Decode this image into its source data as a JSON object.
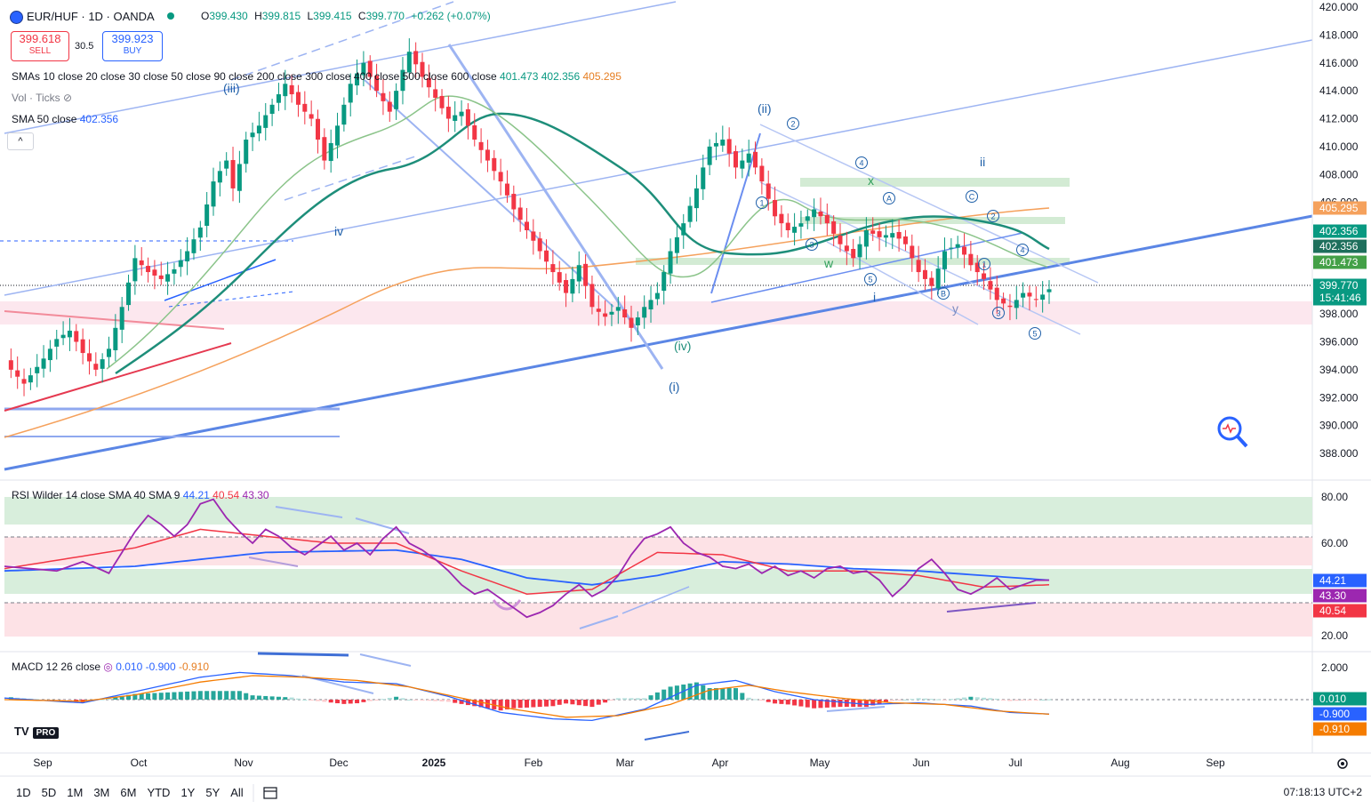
{
  "header": {
    "symbol": "EUR/HUF · 1D · OANDA",
    "open_label": "O",
    "open": "399.430",
    "high_label": "H",
    "high": "399.815",
    "low_label": "L",
    "low": "399.415",
    "close_label": "C",
    "close": "399.770",
    "change": "+0.262 (+0.07%)"
  },
  "trade": {
    "sell_price": "399.618",
    "sell_label": "SELL",
    "spread": "30.5",
    "buy_price": "399.923",
    "buy_label": "BUY"
  },
  "indicators": {
    "smas_label": "SMAs 10 close 20 close 30 close 50 close 90 close 200 close 300 close 400 close 500 close 600 close",
    "smas_v1": "401.473",
    "smas_v2": "402.356",
    "smas_v3": "405.295",
    "vol_label": "Vol · Ticks",
    "sma50_label": "SMA 50 close",
    "sma50_value": "402.356",
    "rsi_label": "RSI Wilder 14 close SMA 40 SMA 9",
    "rsi_v1": "44.21",
    "rsi_v2": "40.54",
    "rsi_v3": "43.30",
    "macd_label": "MACD 12 26 close",
    "macd_v1": "0.010",
    "macd_v2": "-0.900",
    "macd_v3": "-0.910"
  },
  "collapse_button": "^",
  "timeframes": [
    "1D",
    "5D",
    "1M",
    "3M",
    "6M",
    "YTD",
    "1Y",
    "5Y",
    "All"
  ],
  "clock": "07:18:13 UTC+2",
  "logo": "TV",
  "logo_badge": "PRO",
  "colors": {
    "up": "#089981",
    "down": "#f23645",
    "blue": "#2962ff",
    "orange": "#f5a15c",
    "purple": "#9c27b0"
  },
  "chart_data": {
    "type": "candlestick",
    "x_ticks": [
      "Sep",
      "Oct",
      "Nov",
      "Dec",
      "2025",
      "Feb",
      "Mar",
      "Apr",
      "May",
      "Jun",
      "Jul",
      "Aug",
      "Sep"
    ],
    "price_axis": {
      "range": [
        387,
        420
      ],
      "ticks": [
        "420.000",
        "418.000",
        "416.000",
        "414.000",
        "412.000",
        "410.000",
        "408.000",
        "406.000",
        "398.000",
        "396.000",
        "394.000",
        "392.000",
        "390.000",
        "388.000"
      ],
      "badges": [
        {
          "value": 405.295,
          "label": "405.295",
          "color": "#f5a15c"
        },
        {
          "value": 402.356,
          "label": "402.356",
          "color": "#089981"
        },
        {
          "value": 402.356,
          "label": "402.356",
          "color": "#1e6f5c"
        },
        {
          "value": 401.473,
          "label": "401.473",
          "color": "#43a047"
        },
        {
          "value": 399.77,
          "label": "399.770",
          "sub": "15:41:46",
          "color": "#089981"
        }
      ]
    },
    "rsi_axis": {
      "range": [
        15,
        85
      ],
      "ticks": [
        "80.00",
        "60.00",
        "20.00"
      ],
      "badges": [
        {
          "value": 44.21,
          "label": "44.21",
          "color": "#2962ff"
        },
        {
          "value": 43.3,
          "label": "43.30",
          "color": "#9c27b0"
        },
        {
          "value": 40.54,
          "label": "40.54",
          "color": "#f23645"
        }
      ]
    },
    "macd_axis": {
      "range": [
        -1.8,
        2.6
      ],
      "ticks": [
        "2.000"
      ],
      "badges": [
        {
          "value": 0.01,
          "label": "0.010",
          "color": "#089981"
        },
        {
          "value": -0.9,
          "label": "-0.900",
          "color": "#2962ff"
        },
        {
          "value": -0.91,
          "label": "-0.910",
          "color": "#f57c00"
        }
      ]
    },
    "price_path": [
      [
        0,
        394.5
      ],
      [
        3,
        393.0
      ],
      [
        6,
        394.8
      ],
      [
        8,
        396.2
      ],
      [
        10,
        396.8
      ],
      [
        12,
        395.2
      ],
      [
        14,
        394.0
      ],
      [
        16,
        395.5
      ],
      [
        18,
        398.5
      ],
      [
        20,
        402.0
      ],
      [
        22,
        401.0
      ],
      [
        24,
        400.5
      ],
      [
        26,
        401.2
      ],
      [
        28,
        402.5
      ],
      [
        30,
        404.2
      ],
      [
        32,
        407.5
      ],
      [
        34,
        409.0
      ],
      [
        35,
        407.0
      ],
      [
        37,
        410.5
      ],
      [
        39,
        411.5
      ],
      [
        41,
        413.0
      ],
      [
        43,
        414.5
      ],
      [
        45,
        413.0
      ],
      [
        47,
        412.0
      ],
      [
        49,
        409.0
      ],
      [
        51,
        411.5
      ],
      [
        53,
        414.5
      ],
      [
        55,
        416.0
      ],
      [
        57,
        414.0
      ],
      [
        59,
        412.5
      ],
      [
        61,
        415.5
      ],
      [
        62,
        416.8
      ],
      [
        64,
        415.0
      ],
      [
        66,
        413.5
      ],
      [
        68,
        412.0
      ],
      [
        70,
        412.5
      ],
      [
        72,
        410.5
      ],
      [
        74,
        409.0
      ],
      [
        76,
        407.5
      ],
      [
        78,
        405.5
      ],
      [
        80,
        404.0
      ],
      [
        82,
        402.5
      ],
      [
        84,
        401.0
      ],
      [
        86,
        399.5
      ],
      [
        88,
        401.5
      ],
      [
        90,
        398.5
      ],
      [
        92,
        397.8
      ],
      [
        94,
        398.5
      ],
      [
        96,
        397.0
      ],
      [
        98,
        398.5
      ],
      [
        100,
        399.5
      ],
      [
        102,
        402.5
      ],
      [
        104,
        404.5
      ],
      [
        106,
        407.0
      ],
      [
        108,
        410.0
      ],
      [
        110,
        410.5
      ],
      [
        112,
        408.5
      ],
      [
        114,
        409.5
      ],
      [
        116,
        407.5
      ],
      [
        118,
        405.0
      ],
      [
        120,
        404.0
      ],
      [
        122,
        404.5
      ],
      [
        124,
        405.5
      ],
      [
        126,
        404.5
      ],
      [
        128,
        403.0
      ],
      [
        130,
        402.0
      ],
      [
        132,
        404.0
      ],
      [
        134,
        403.5
      ],
      [
        136,
        403.8
      ],
      [
        138,
        403.0
      ],
      [
        140,
        401.0
      ],
      [
        142,
        400.0
      ],
      [
        144,
        402.5
      ],
      [
        146,
        403.0
      ],
      [
        148,
        401.5
      ],
      [
        150,
        400.5
      ],
      [
        152,
        399.0
      ],
      [
        154,
        398.5
      ],
      [
        156,
        399.5
      ],
      [
        158,
        399.0
      ],
      [
        160,
        399.77
      ]
    ],
    "rsi_path": [
      [
        0,
        50
      ],
      [
        4,
        49
      ],
      [
        8,
        48
      ],
      [
        12,
        52
      ],
      [
        16,
        47
      ],
      [
        20,
        65
      ],
      [
        22,
        72
      ],
      [
        24,
        68
      ],
      [
        26,
        63
      ],
      [
        28,
        68
      ],
      [
        30,
        77
      ],
      [
        32,
        79
      ],
      [
        34,
        71
      ],
      [
        36,
        65
      ],
      [
        38,
        60
      ],
      [
        40,
        66
      ],
      [
        42,
        63
      ],
      [
        44,
        58
      ],
      [
        46,
        55
      ],
      [
        48,
        59
      ],
      [
        50,
        63
      ],
      [
        52,
        57
      ],
      [
        54,
        60
      ],
      [
        56,
        55
      ],
      [
        58,
        62
      ],
      [
        60,
        67
      ],
      [
        62,
        60
      ],
      [
        64,
        57
      ],
      [
        66,
        53
      ],
      [
        68,
        48
      ],
      [
        70,
        42
      ],
      [
        72,
        38
      ],
      [
        74,
        40
      ],
      [
        76,
        36
      ],
      [
        78,
        32
      ],
      [
        80,
        28
      ],
      [
        82,
        30
      ],
      [
        84,
        33
      ],
      [
        86,
        38
      ],
      [
        88,
        42
      ],
      [
        90,
        37
      ],
      [
        92,
        40
      ],
      [
        94,
        46
      ],
      [
        96,
        55
      ],
      [
        98,
        62
      ],
      [
        100,
        64
      ],
      [
        102,
        67
      ],
      [
        104,
        60
      ],
      [
        106,
        56
      ],
      [
        108,
        54
      ],
      [
        110,
        50
      ],
      [
        112,
        49
      ],
      [
        114,
        51
      ],
      [
        116,
        47
      ],
      [
        118,
        50
      ],
      [
        120,
        46
      ],
      [
        122,
        48
      ],
      [
        124,
        45
      ],
      [
        126,
        49
      ],
      [
        128,
        50
      ],
      [
        130,
        47
      ],
      [
        132,
        48
      ],
      [
        134,
        44
      ],
      [
        136,
        37
      ],
      [
        138,
        42
      ],
      [
        140,
        49
      ],
      [
        142,
        53
      ],
      [
        144,
        47
      ],
      [
        146,
        40
      ],
      [
        148,
        38
      ],
      [
        150,
        41
      ],
      [
        152,
        45
      ],
      [
        154,
        40
      ],
      [
        156,
        42
      ],
      [
        158,
        44
      ],
      [
        160,
        44
      ]
    ],
    "rsi_sma40_path": [
      [
        0,
        48
      ],
      [
        20,
        50
      ],
      [
        40,
        56
      ],
      [
        60,
        57
      ],
      [
        70,
        53
      ],
      [
        80,
        45
      ],
      [
        90,
        42
      ],
      [
        100,
        46
      ],
      [
        110,
        52
      ],
      [
        120,
        51
      ],
      [
        130,
        49
      ],
      [
        140,
        48
      ],
      [
        150,
        46
      ],
      [
        160,
        44
      ]
    ],
    "rsi_sma9_path": [
      [
        0,
        49
      ],
      [
        20,
        58
      ],
      [
        30,
        66
      ],
      [
        40,
        63
      ],
      [
        50,
        60
      ],
      [
        60,
        60
      ],
      [
        70,
        48
      ],
      [
        80,
        38
      ],
      [
        90,
        40
      ],
      [
        100,
        56
      ],
      [
        110,
        55
      ],
      [
        120,
        48
      ],
      [
        130,
        48
      ],
      [
        140,
        46
      ],
      [
        150,
        41
      ],
      [
        160,
        42
      ]
    ],
    "macd_line_path": [
      [
        0,
        0.1
      ],
      [
        12,
        -0.2
      ],
      [
        20,
        0.5
      ],
      [
        30,
        1.4
      ],
      [
        36,
        1.7
      ],
      [
        44,
        1.5
      ],
      [
        52,
        1.1
      ],
      [
        60,
        1.0
      ],
      [
        68,
        0.2
      ],
      [
        76,
        -0.8
      ],
      [
        84,
        -1.2
      ],
      [
        90,
        -1.3
      ],
      [
        98,
        -0.6
      ],
      [
        106,
        0.9
      ],
      [
        112,
        1.2
      ],
      [
        118,
        0.5
      ],
      [
        124,
        0.0
      ],
      [
        132,
        -0.3
      ],
      [
        140,
        -0.2
      ],
      [
        148,
        -0.4
      ],
      [
        154,
        -0.8
      ],
      [
        160,
        -0.9
      ]
    ],
    "macd_signal_path": [
      [
        0,
        0.0
      ],
      [
        12,
        -0.1
      ],
      [
        20,
        0.3
      ],
      [
        30,
        1.1
      ],
      [
        38,
        1.5
      ],
      [
        46,
        1.4
      ],
      [
        54,
        1.2
      ],
      [
        62,
        0.8
      ],
      [
        70,
        0.1
      ],
      [
        78,
        -0.6
      ],
      [
        86,
        -1.1
      ],
      [
        94,
        -1.0
      ],
      [
        102,
        -0.3
      ],
      [
        108,
        0.6
      ],
      [
        114,
        0.9
      ],
      [
        120,
        0.5
      ],
      [
        128,
        0.1
      ],
      [
        136,
        -0.2
      ],
      [
        144,
        -0.3
      ],
      [
        152,
        -0.7
      ],
      [
        160,
        -0.91
      ]
    ]
  }
}
